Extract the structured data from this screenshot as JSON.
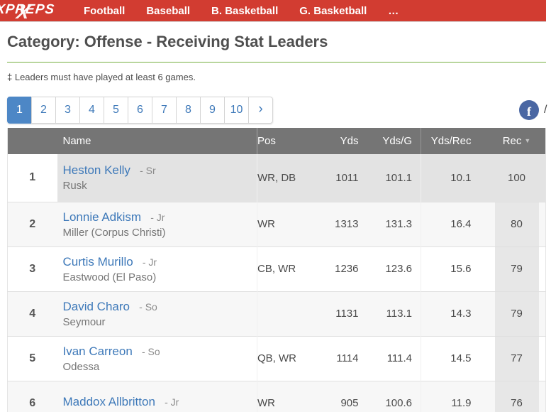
{
  "nav": {
    "logo_text": "XPREPS",
    "logo_x": "X",
    "items": [
      "Football",
      "Baseball",
      "B. Basketball",
      "G. Basketball",
      "…"
    ]
  },
  "page": {
    "title": "Category: Offense - Receiving Stat Leaders",
    "note": "‡ Leaders must have played at least 6 games."
  },
  "pagination": {
    "pages": [
      "1",
      "2",
      "3",
      "4",
      "5",
      "6",
      "7",
      "8",
      "9",
      "10"
    ],
    "active": "1",
    "next": "›"
  },
  "share": {
    "facebook_label": "f",
    "separator": "/"
  },
  "table": {
    "columns": {
      "name": "Name",
      "pos": "Pos",
      "yds": "Yds",
      "ydsg": "Yds/G",
      "ydsrec": "Yds/Rec",
      "rec": "Rec"
    },
    "sorted_column": "Rec",
    "sort_indicator": "▼",
    "rows": [
      {
        "rank": "1",
        "name": "Heston Kelly",
        "grade": "- Sr",
        "school": "Rusk",
        "pos": "WR, DB",
        "yds": "1011",
        "ydsg": "101.1",
        "ydsrec": "10.1",
        "rec": "100",
        "highlighted": true
      },
      {
        "rank": "2",
        "name": "Lonnie Adkism",
        "grade": "- Jr",
        "school": "Miller (Corpus Christi)",
        "pos": "WR",
        "yds": "1313",
        "ydsg": "131.3",
        "ydsrec": "16.4",
        "rec": "80",
        "highlighted": false
      },
      {
        "rank": "3",
        "name": "Curtis Murillo",
        "grade": "- Jr",
        "school": "Eastwood (El Paso)",
        "pos": "CB, WR",
        "yds": "1236",
        "ydsg": "123.6",
        "ydsrec": "15.6",
        "rec": "79",
        "highlighted": false
      },
      {
        "rank": "4",
        "name": "David Charo",
        "grade": "- So",
        "school": "Seymour",
        "pos": "",
        "yds": "1131",
        "ydsg": "113.1",
        "ydsrec": "14.3",
        "rec": "79",
        "highlighted": false
      },
      {
        "rank": "5",
        "name": "Ivan Carreon",
        "grade": "- So",
        "school": "Odessa",
        "pos": "QB, WR",
        "yds": "1114",
        "ydsg": "111.4",
        "ydsrec": "14.5",
        "rec": "77",
        "highlighted": false
      },
      {
        "rank": "6",
        "name": "Maddox Allbritton",
        "grade": "- Jr",
        "school": "",
        "pos": "WR",
        "yds": "905",
        "ydsg": "100.6",
        "ydsrec": "11.9",
        "rec": "76",
        "highlighted": false
      }
    ]
  },
  "colors": {
    "nav_red": "#d23c31",
    "divider_green": "#76b043",
    "link_blue": "#3e79b9",
    "active_page_blue": "#4d87c6",
    "facebook_blue": "#4a67a3",
    "header_gray": "#757575",
    "highlight_row_gray": "#e3e3e3",
    "sorted_col_gray": "#e7e7e7"
  }
}
